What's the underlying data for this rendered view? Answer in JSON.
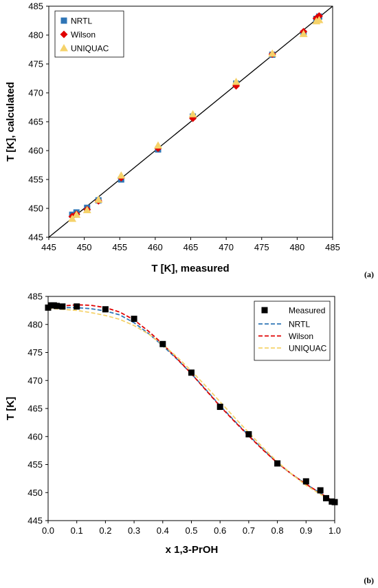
{
  "chart_data": [
    {
      "id": "a",
      "type": "scatter",
      "panel_label": "(a)",
      "xlabel": "T [K], measured",
      "ylabel": "T [K], calculated",
      "xlim": [
        445,
        485
      ],
      "ylim": [
        445,
        485
      ],
      "xticks": [
        445,
        450,
        455,
        460,
        465,
        470,
        475,
        480,
        485
      ],
      "yticks": [
        445,
        450,
        455,
        460,
        465,
        470,
        475,
        480,
        485
      ],
      "grid": false,
      "legend_position": "top-left",
      "diagonal": [
        [
          445,
          445
        ],
        [
          485,
          485
        ]
      ],
      "series": [
        {
          "name": "NRTL",
          "color": "#2E75B6",
          "marker": "square",
          "points": [
            [
              448.3,
              448.9
            ],
            [
              448.9,
              449.3
            ],
            [
              450.4,
              450.1
            ],
            [
              452.0,
              451.4
            ],
            [
              455.2,
              455.0
            ],
            [
              460.4,
              460.2
            ],
            [
              465.3,
              465.9
            ],
            [
              471.4,
              471.6
            ],
            [
              476.5,
              476.6
            ],
            [
              480.9,
              480.3
            ],
            [
              482.7,
              482.8
            ],
            [
              483.1,
              483.2
            ]
          ]
        },
        {
          "name": "Wilson",
          "color": "#E00000",
          "marker": "diamond",
          "points": [
            [
              448.3,
              448.6
            ],
            [
              448.9,
              449.0
            ],
            [
              450.4,
              449.8
            ],
            [
              452.0,
              451.3
            ],
            [
              455.2,
              455.3
            ],
            [
              460.4,
              460.4
            ],
            [
              465.3,
              465.6
            ],
            [
              471.4,
              471.2
            ],
            [
              476.5,
              476.7
            ],
            [
              480.9,
              480.6
            ],
            [
              482.7,
              482.9
            ],
            [
              483.1,
              483.3
            ]
          ]
        },
        {
          "name": "UNIQUAC",
          "color": "#F5D26A",
          "marker": "triangle",
          "points": [
            [
              448.3,
              448.2
            ],
            [
              448.9,
              448.9
            ],
            [
              450.4,
              449.7
            ],
            [
              452.0,
              451.5
            ],
            [
              455.2,
              455.7
            ],
            [
              460.4,
              460.9
            ],
            [
              465.3,
              466.3
            ],
            [
              471.4,
              471.9
            ],
            [
              476.5,
              476.8
            ],
            [
              480.9,
              480.2
            ],
            [
              482.7,
              482.4
            ],
            [
              483.1,
              482.6
            ]
          ]
        }
      ]
    },
    {
      "id": "b",
      "type": "line",
      "panel_label": "(b)",
      "xlabel": "x 1,3-PrOH",
      "ylabel": "T [K]",
      "xlim": [
        0.0,
        1.0
      ],
      "ylim": [
        445,
        485
      ],
      "xticks": [
        "0.0",
        "0.1",
        "0.2",
        "0.3",
        "0.4",
        "0.5",
        "0.6",
        "0.7",
        "0.8",
        "0.9",
        "1.0"
      ],
      "yticks": [
        445,
        450,
        455,
        460,
        465,
        470,
        475,
        480,
        485
      ],
      "grid": false,
      "legend_position": "top-right",
      "measured": {
        "name": "Measured",
        "color": "#000000",
        "marker": "square",
        "points": [
          [
            0.0,
            483.0
          ],
          [
            0.01,
            483.4
          ],
          [
            0.02,
            483.4
          ],
          [
            0.03,
            483.3
          ],
          [
            0.05,
            483.2
          ],
          [
            0.1,
            483.2
          ],
          [
            0.2,
            482.7
          ],
          [
            0.3,
            481.0
          ],
          [
            0.4,
            476.5
          ],
          [
            0.5,
            471.4
          ],
          [
            0.6,
            465.3
          ],
          [
            0.7,
            460.4
          ],
          [
            0.8,
            455.2
          ],
          [
            0.9,
            452.0
          ],
          [
            0.95,
            450.4
          ],
          [
            0.97,
            449.0
          ],
          [
            0.99,
            448.4
          ],
          [
            1.0,
            448.3
          ]
        ]
      },
      "series": [
        {
          "name": "NRTL",
          "color": "#2E75B6",
          "dash": true,
          "points": [
            [
              0.0,
              483.0
            ],
            [
              0.05,
              483.0
            ],
            [
              0.1,
              483.0
            ],
            [
              0.15,
              482.8
            ],
            [
              0.2,
              482.4
            ],
            [
              0.25,
              481.7
            ],
            [
              0.3,
              480.3
            ],
            [
              0.35,
              478.4
            ],
            [
              0.4,
              476.2
            ],
            [
              0.45,
              473.8
            ],
            [
              0.5,
              471.2
            ],
            [
              0.55,
              468.4
            ],
            [
              0.6,
              465.5
            ],
            [
              0.65,
              462.8
            ],
            [
              0.7,
              460.2
            ],
            [
              0.75,
              457.7
            ],
            [
              0.8,
              455.3
            ],
            [
              0.85,
              453.3
            ],
            [
              0.9,
              451.5
            ],
            [
              0.95,
              449.9
            ],
            [
              1.0,
              448.3
            ]
          ]
        },
        {
          "name": "Wilson",
          "color": "#E00000",
          "dash": true,
          "points": [
            [
              0.0,
              483.0
            ],
            [
              0.05,
              483.3
            ],
            [
              0.1,
              483.5
            ],
            [
              0.15,
              483.4
            ],
            [
              0.2,
              483.0
            ],
            [
              0.25,
              482.2
            ],
            [
              0.3,
              480.8
            ],
            [
              0.35,
              478.8
            ],
            [
              0.4,
              476.5
            ],
            [
              0.45,
              473.9
            ],
            [
              0.5,
              471.2
            ],
            [
              0.55,
              468.3
            ],
            [
              0.6,
              465.4
            ],
            [
              0.65,
              462.7
            ],
            [
              0.7,
              460.1
            ],
            [
              0.75,
              457.6
            ],
            [
              0.8,
              455.3
            ],
            [
              0.85,
              453.3
            ],
            [
              0.9,
              451.5
            ],
            [
              0.95,
              449.9
            ],
            [
              1.0,
              448.3
            ]
          ]
        },
        {
          "name": "UNIQUAC",
          "color": "#F5D26A",
          "dash": true,
          "points": [
            [
              0.0,
              482.9
            ],
            [
              0.05,
              482.7
            ],
            [
              0.1,
              482.5
            ],
            [
              0.15,
              482.1
            ],
            [
              0.2,
              481.6
            ],
            [
              0.25,
              480.9
            ],
            [
              0.3,
              479.8
            ],
            [
              0.35,
              478.3
            ],
            [
              0.4,
              476.4
            ],
            [
              0.45,
              474.2
            ],
            [
              0.5,
              471.7
            ],
            [
              0.55,
              469.0
            ],
            [
              0.6,
              466.2
            ],
            [
              0.65,
              463.4
            ],
            [
              0.7,
              460.7
            ],
            [
              0.75,
              458.0
            ],
            [
              0.8,
              455.5
            ],
            [
              0.85,
              453.3
            ],
            [
              0.9,
              451.3
            ],
            [
              0.95,
              449.7
            ],
            [
              1.0,
              448.3
            ]
          ]
        }
      ]
    }
  ]
}
